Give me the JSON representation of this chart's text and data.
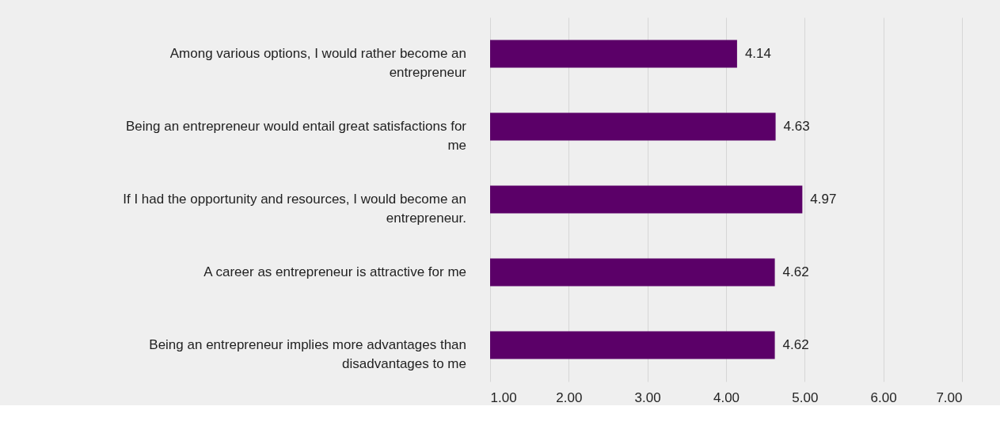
{
  "chart_data": {
    "type": "bar",
    "orientation": "horizontal",
    "categories": [
      "Among various options, I would rather become an entrepreneur",
      "Being an entrepreneur would entail great satisfactions for me",
      "If I had the opportunity and resources, I would become an entrepreneur.",
      "A career as entrepreneur is attractive for me",
      "Being an entrepreneur implies more advantages than disadvantages to me"
    ],
    "values": [
      4.14,
      4.63,
      4.97,
      4.62,
      4.62
    ],
    "color": "#5b0068",
    "xlim": [
      1,
      7
    ],
    "xticks": [
      {
        "value": 1,
        "label": "1.00"
      },
      {
        "value": 2,
        "label": "2.00"
      },
      {
        "value": 3,
        "label": "3.00"
      },
      {
        "value": 4,
        "label": "4.00"
      },
      {
        "value": 5,
        "label": "5.00"
      },
      {
        "value": 6,
        "label": "6.00"
      },
      {
        "value": 7,
        "label": "7.00"
      }
    ],
    "grid": "x",
    "data_labels": true
  }
}
